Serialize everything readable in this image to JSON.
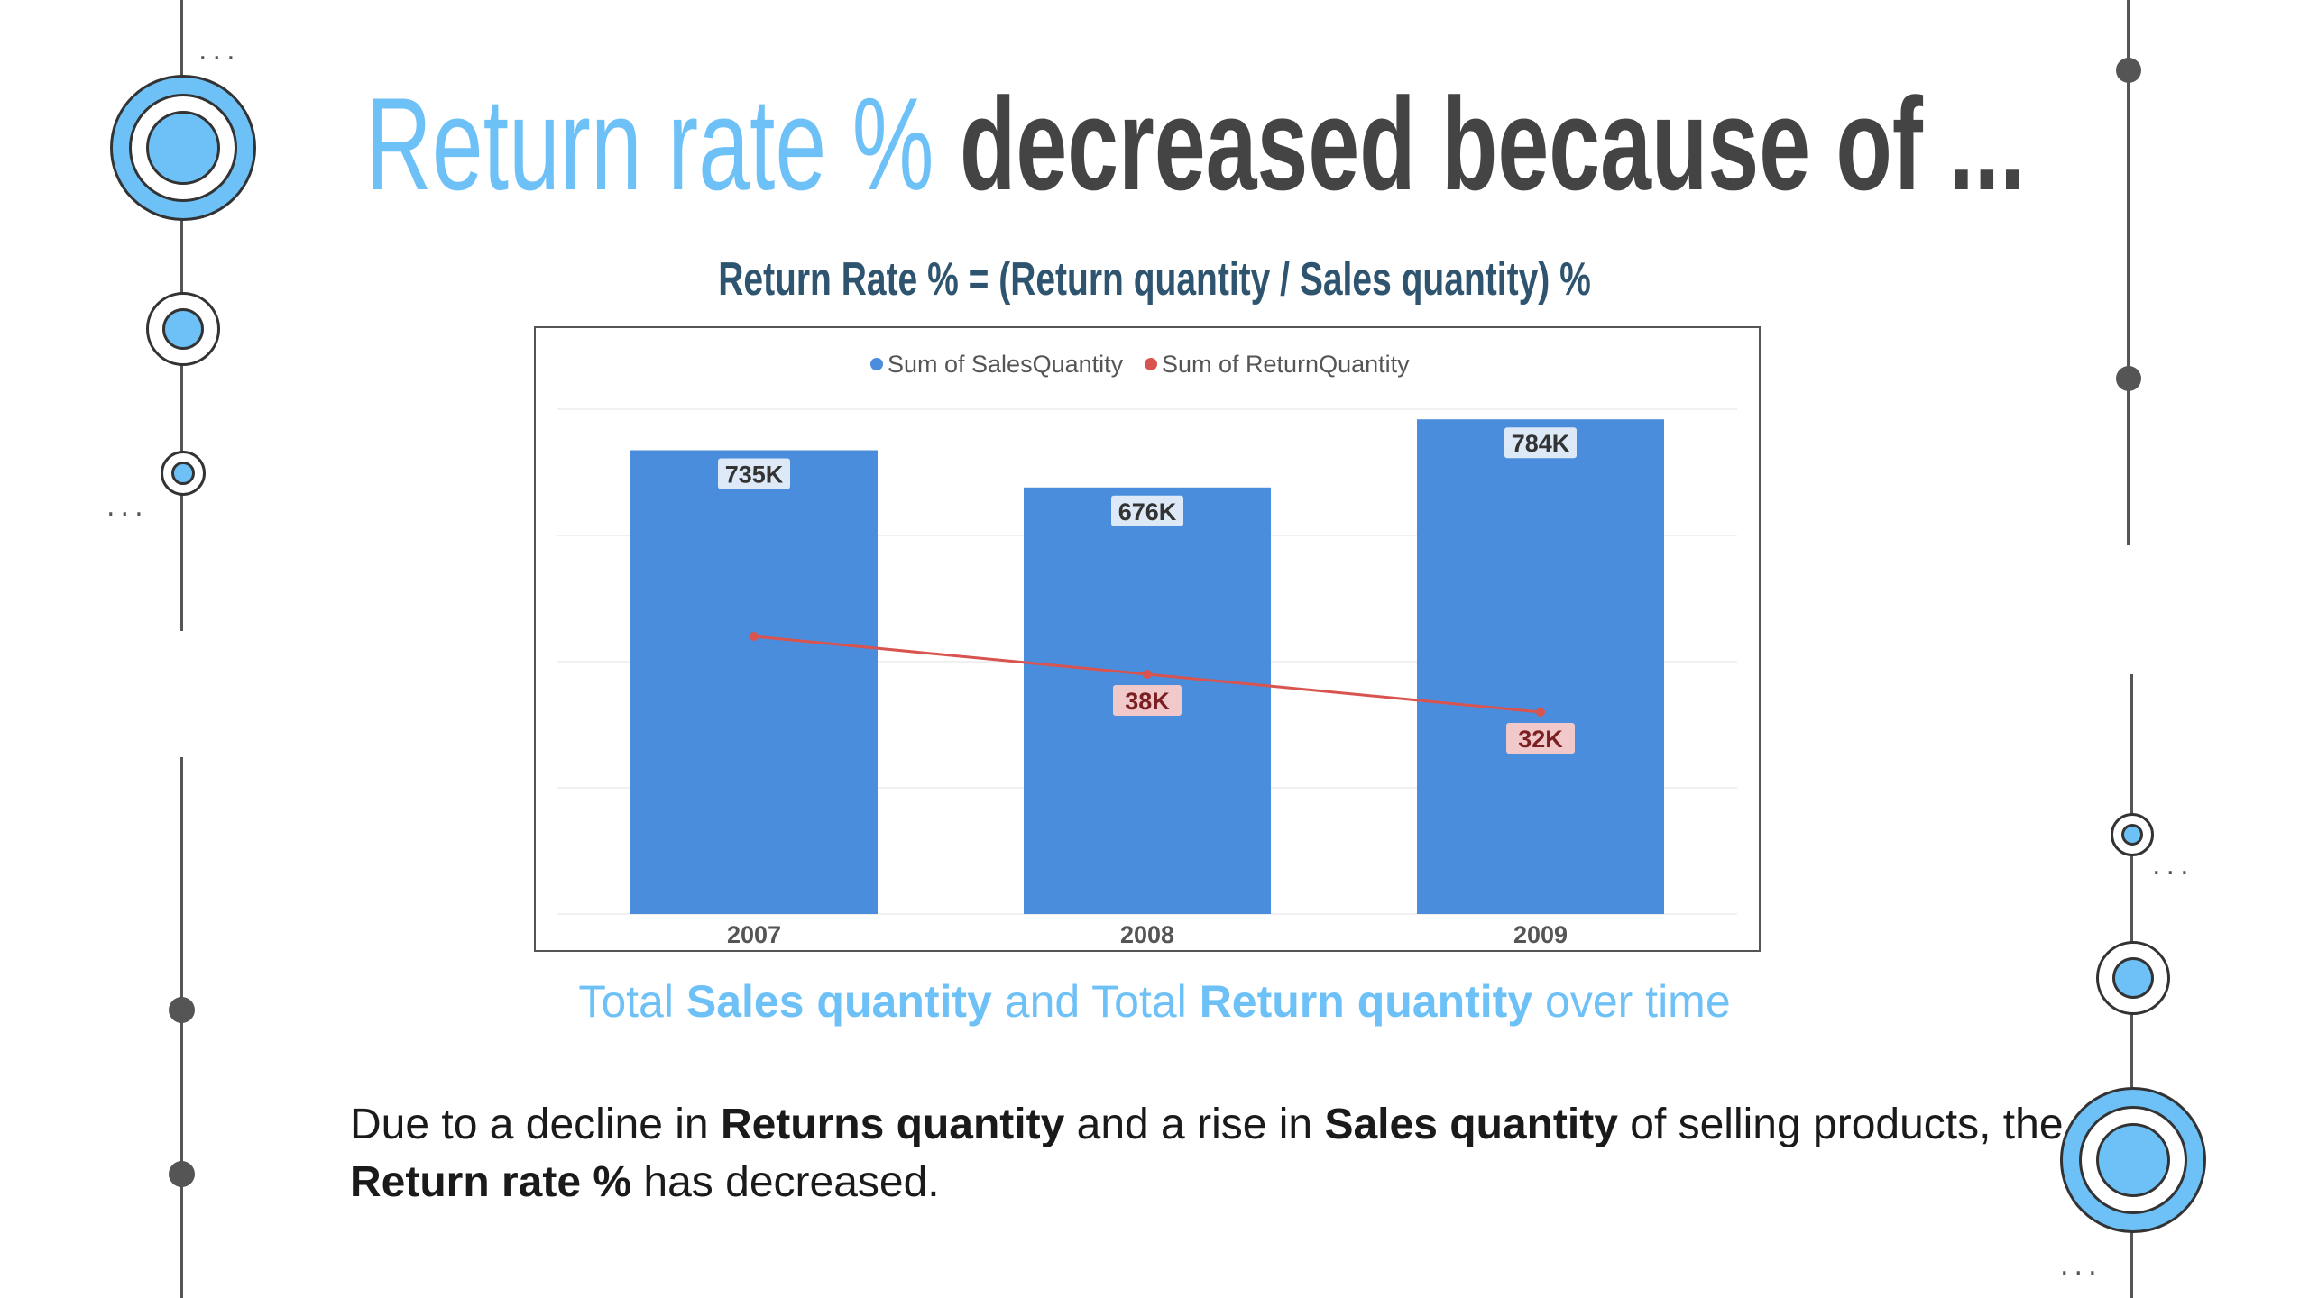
{
  "slide": {
    "title_part1": "Return rate %",
    "title_part2": "decreased because of ...",
    "formula": "Return Rate %  = (Return quantity / Sales quantity) %",
    "caption": {
      "t1": "Total ",
      "b1": "Sales quantity",
      "t2": " and Total ",
      "b2": "Return quantity",
      "t3": " over time"
    },
    "body": {
      "t1": "Due to a decline in ",
      "b1": "Returns quantity",
      "t2": " and a rise in ",
      "b2": "Sales quantity",
      "t3": " of selling products, the ",
      "b3": "Return rate %",
      "t4": " has decreased."
    },
    "decor": {
      "ellipsis": "..."
    }
  },
  "colors": {
    "accent_blue": "#6ec1f7",
    "title_dark": "#444444",
    "formula": "#2e5470",
    "bar": "#4a8ddc",
    "line": "#d9534f"
  },
  "chart_data": {
    "type": "bar",
    "categories": [
      "2007",
      "2008",
      "2009"
    ],
    "series": [
      {
        "name": "Sum of SalesQuantity",
        "type": "bar",
        "values": [
          735000,
          676000,
          784000
        ],
        "labels": [
          "735K",
          "676K",
          "784K"
        ],
        "color": "#4a8ddc"
      },
      {
        "name": "Sum of ReturnQuantity",
        "type": "line",
        "secondary_axis": true,
        "values": [
          44000,
          38000,
          32000
        ],
        "labels": [
          "",
          "38K",
          "32K"
        ],
        "color": "#d9534f"
      }
    ],
    "legend": "top-center",
    "grid": true,
    "ylim": [
      0,
      800000
    ],
    "ylim_secondary": [
      0,
      80000
    ]
  }
}
